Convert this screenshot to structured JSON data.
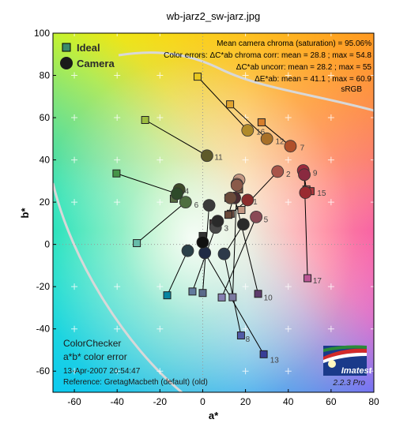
{
  "chart_data": {
    "type": "scatter",
    "title": "wb-jarz2_sw-jarz.jpg",
    "xlabel": "a*",
    "ylabel": "b*",
    "xlim": [
      -70,
      80
    ],
    "ylim": [
      -70,
      100
    ],
    "xticks": [
      -60,
      -40,
      -20,
      0,
      20,
      40,
      60,
      80
    ],
    "yticks": [
      -60,
      -40,
      -20,
      0,
      20,
      40,
      60,
      80,
      100
    ],
    "grid": "plus markers every 20 units",
    "legend": {
      "position": "top-left",
      "ideal_label": "Ideal",
      "camera_label": "Camera"
    },
    "stats": [
      "Mean camera chroma (saturation) = 95.06%",
      "Color errors:  ΔC*ab chroma corr:  mean = 28.8 ;  max = 54.8",
      "ΔC*ab uncorr:  mean = 28.2 ;  max = 55",
      "ΔE*ab:  mean = 41.1 ;  max = 60.9",
      "sRGB"
    ],
    "info": {
      "line1": "ColorChecker",
      "line2": "a*b* color error",
      "date": "13-Apr-2007 20:54:47",
      "reference": "Reference: GretagMacbeth (default) (old)"
    },
    "logo": {
      "name": "Imatest",
      "version": "2.2.3  Pro"
    },
    "patches": [
      {
        "id": "1",
        "ideal": [
          13.1,
          14.5
        ],
        "camera": [
          21,
          21
        ],
        "ideal_color": "#735244",
        "camera_color": "#8a2c2c"
      },
      {
        "id": "2",
        "ideal": [
          18.1,
          16.3
        ],
        "camera": [
          35,
          34.5
        ],
        "ideal_color": "#c29682",
        "camera_color": "#a8554a"
      },
      {
        "id": "3",
        "ideal": [
          -4.8,
          -22.3
        ],
        "camera": [
          6,
          8
        ],
        "ideal_color": "#627a9d",
        "camera_color": "#4a4a4a"
      },
      {
        "id": "4",
        "ideal": [
          -13.5,
          21.6
        ],
        "camera": [
          -11,
          26
        ],
        "ideal_color": "#576c43",
        "camera_color": "#3d4a28"
      },
      {
        "id": "5",
        "ideal": [
          8.9,
          -25.1
        ],
        "camera": [
          25,
          13
        ],
        "ideal_color": "#8580b1",
        "camera_color": "#8a4a56"
      },
      {
        "id": "6",
        "ideal": [
          -30.8,
          0.6
        ],
        "camera": [
          -8,
          20
        ],
        "ideal_color": "#67bdaa",
        "camera_color": "#4e6e40"
      },
      {
        "id": "7",
        "ideal": [
          27.5,
          57.8
        ],
        "camera": [
          41,
          46.5
        ],
        "ideal_color": "#d67e2c",
        "camera_color": "#b0502a"
      },
      {
        "id": "8",
        "ideal": [
          17.9,
          -43.1
        ],
        "camera": [
          10,
          -4.5
        ],
        "ideal_color": "#505ba6",
        "camera_color": "#2d3a4a"
      },
      {
        "id": "9",
        "ideal": [
          48.5,
          26
        ],
        "camera": [
          47,
          35
        ],
        "ideal_color": "#c15a63",
        "camera_color": "#9a2a3c"
      },
      {
        "id": "10",
        "ideal": [
          25.9,
          -23.4
        ],
        "camera": [
          15,
          22
        ],
        "ideal_color": "#5e3c6c",
        "camera_color": "#4a2a30"
      },
      {
        "id": "11",
        "ideal": [
          -26.9,
          58.9
        ],
        "camera": [
          2,
          42
        ],
        "ideal_color": "#9dbc40",
        "camera_color": "#5e5a2a"
      },
      {
        "id": "12",
        "ideal": [
          12.8,
          66.3
        ],
        "camera": [
          30,
          50
        ],
        "ideal_color": "#e0a32e",
        "camera_color": "#a87028"
      },
      {
        "id": "13",
        "ideal": [
          28.5,
          -52
        ],
        "camera": [
          1,
          -4
        ],
        "ideal_color": "#383d96",
        "camera_color": "#1f2a44"
      },
      {
        "id": "14",
        "ideal": [
          -40.3,
          33.6
        ],
        "camera": [
          -12,
          24
        ],
        "ideal_color": "#469449",
        "camera_color": "#2e4a2a"
      },
      {
        "id": "15",
        "ideal": [
          50.4,
          25.2
        ],
        "camera": [
          48,
          24.5
        ],
        "ideal_color": "#af363c",
        "camera_color": "#9a2a30"
      },
      {
        "id": "16",
        "ideal": [
          -2.4,
          79.4
        ],
        "camera": [
          21,
          54
        ],
        "ideal_color": "#e7c71f",
        "camera_color": "#b08a2a"
      },
      {
        "id": "17",
        "ideal": [
          49,
          -16
        ],
        "camera": [
          47.5,
          33
        ],
        "ideal_color": "#bb5695",
        "camera_color": "#8a2a40"
      },
      {
        "id": "18",
        "ideal": [
          -16.6,
          -24.1
        ],
        "camera": [
          -7,
          -3
        ],
        "ideal_color": "#0885a1",
        "camera_color": "#2a4048"
      },
      {
        "id": "",
        "ideal": [
          12,
          14
        ],
        "camera": [
          17,
          30.5
        ],
        "ideal_color": "#6a4a3a",
        "camera_color": "#c29682"
      },
      {
        "id": "",
        "ideal": [
          17,
          26
        ],
        "camera": [
          16,
          28.5
        ],
        "ideal_color": "#7a5a46",
        "camera_color": "#a07060"
      },
      {
        "id": "",
        "ideal": [
          12,
          22
        ],
        "camera": [
          13,
          22
        ],
        "ideal_color": "#8a6a52",
        "camera_color": "#6a4a3a"
      },
      {
        "id": "",
        "ideal": [
          14,
          -25
        ],
        "camera": [
          16,
          28
        ],
        "ideal_color": "#7a7aa0",
        "camera_color": "#8a5a4a"
      },
      {
        "id": "",
        "ideal": [
          0,
          -23
        ],
        "camera": [
          3,
          18.5
        ],
        "ideal_color": "#5a6a8a",
        "camera_color": "#3a3a3a"
      },
      {
        "id": "",
        "ideal": [
          10,
          -5
        ],
        "camera": [
          19,
          9.5
        ],
        "ideal_color": "#4a4a6a",
        "camera_color": "#2a2a2a"
      },
      {
        "id": "",
        "ideal": [
          0,
          4
        ],
        "camera": [
          0,
          1
        ],
        "ideal_color": "#333333",
        "camera_color": "#111111"
      },
      {
        "id": "",
        "ideal": [
          5,
          10
        ],
        "camera": [
          7,
          11
        ],
        "ideal_color": "#4a3a3a",
        "camera_color": "#2a2a2a"
      }
    ],
    "labels": [
      {
        "text": "1",
        "at": [
          23.5,
          19
        ]
      },
      {
        "text": "2",
        "at": [
          39,
          32
        ]
      },
      {
        "text": "3",
        "at": [
          10,
          6.5
        ]
      },
      {
        "text": "4",
        "at": [
          -8.5,
          24
        ]
      },
      {
        "text": "5",
        "at": [
          28.5,
          10.5
        ]
      },
      {
        "text": "6",
        "at": [
          -4,
          17.5
        ]
      },
      {
        "text": "7",
        "at": [
          45.5,
          44.5
        ]
      },
      {
        "text": "8",
        "at": [
          20,
          -46
        ]
      },
      {
        "text": "9",
        "at": [
          51.5,
          32.5
        ]
      },
      {
        "text": "10",
        "at": [
          28.5,
          -26.5
        ]
      },
      {
        "text": "11",
        "at": [
          5.5,
          40
        ]
      },
      {
        "text": "12",
        "at": [
          34,
          47.5
        ]
      },
      {
        "text": "13",
        "at": [
          31.5,
          -56
        ]
      },
      {
        "text": "15",
        "at": [
          53.5,
          23
        ]
      },
      {
        "text": "16",
        "at": [
          25,
          52
        ]
      },
      {
        "text": "17",
        "at": [
          51.5,
          -18.5
        ]
      }
    ],
    "colors": {
      "axis": "#000000",
      "connector": "#000000",
      "boundary": "#d8d8d8",
      "gridcross": "#ffffff",
      "ideal_legend_fill": "#3a8a6a",
      "camera_legend_fill": "#1a1a1a"
    }
  }
}
